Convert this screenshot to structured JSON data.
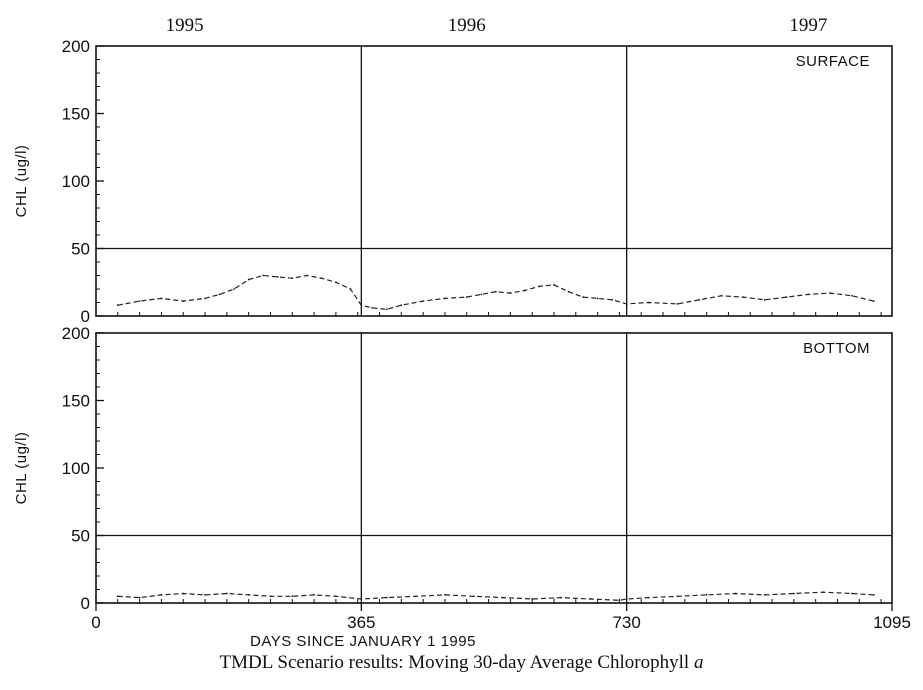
{
  "caption": {
    "text": "TMDL Scenario results: Moving 30-day Average Chlorophyll",
    "italic_part": "a"
  },
  "chart_data": {
    "type": "line",
    "xlabel": "DAYS SINCE JANUARY 1 1995",
    "xlim": [
      0,
      1095
    ],
    "x_ticks": [
      0,
      365,
      730,
      1095
    ],
    "year_labels": [
      {
        "label": "1995",
        "x": 122
      },
      {
        "label": "1996",
        "x": 510
      },
      {
        "label": "1997",
        "x": 980
      }
    ],
    "reference_lines": {
      "vertical": [
        365,
        730
      ],
      "horizontal_y": 50
    },
    "panels": [
      {
        "name": "SURFACE",
        "label": "SURFACE",
        "ylabel": "CHL (ug/l)",
        "ylim": [
          0,
          200
        ],
        "y_ticks": [
          0,
          50,
          100,
          150,
          200
        ],
        "series": [
          {
            "x": [
              30,
              60,
              90,
              120,
              150,
              170,
              190,
              210,
              230,
              250,
              270,
              290,
              310,
              330,
              350,
              365,
              380,
              400,
              420,
              450,
              480,
              510,
              530,
              550,
              570,
              590,
              610,
              630,
              650,
              670,
              690,
              710,
              730,
              760,
              800,
              830,
              860,
              890,
              920,
              950,
              980,
              1010,
              1040,
              1070
            ],
            "y": [
              8,
              11,
              13,
              11,
              13,
              16,
              20,
              27,
              30,
              29,
              28,
              30,
              28,
              25,
              20,
              8,
              6,
              5,
              8,
              11,
              13,
              14,
              16,
              18,
              17,
              19,
              22,
              23,
              18,
              14,
              13,
              12,
              9,
              10,
              9,
              12,
              15,
              14,
              12,
              14,
              16,
              17,
              15,
              11
            ]
          }
        ]
      },
      {
        "name": "BOTTOM",
        "label": "BOTTOM",
        "ylabel": "CHL (ug/l)",
        "ylim": [
          0,
          200
        ],
        "y_ticks": [
          0,
          50,
          100,
          150,
          200
        ],
        "series": [
          {
            "x": [
              30,
              60,
              90,
              120,
              150,
              180,
              210,
              240,
              270,
              300,
              330,
              365,
              400,
              440,
              480,
              520,
              560,
              600,
              640,
              680,
              720,
              730,
              760,
              800,
              840,
              880,
              920,
              960,
              1000,
              1040,
              1070
            ],
            "y": [
              5,
              4,
              6,
              7,
              6,
              7,
              6,
              5,
              5,
              6,
              5,
              3,
              4,
              5,
              6,
              5,
              4,
              3,
              4,
              3,
              2,
              3,
              4,
              5,
              6,
              7,
              6,
              7,
              8,
              7,
              6
            ]
          }
        ]
      }
    ]
  }
}
